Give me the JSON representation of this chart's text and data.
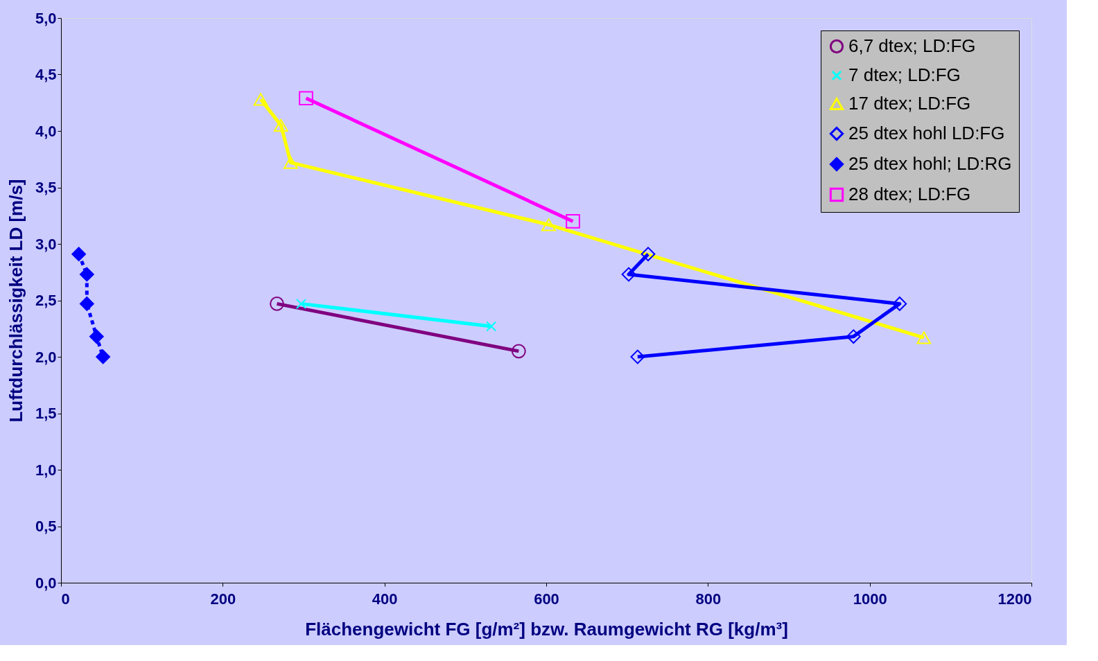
{
  "chart_data": {
    "type": "line",
    "xlabel": "Flächengewicht FG [g/m²]   bzw.   Raumgewicht RG [kg/m³]",
    "ylabel": "Luftdurchlässigkeit LD [m/s]",
    "xlim": [
      0,
      1200
    ],
    "xticks": [
      0,
      200,
      400,
      600,
      800,
      1000,
      1200
    ],
    "ylim": [
      0,
      5
    ],
    "yticks": [
      {
        "value": 0,
        "label": "0,0"
      },
      {
        "value": 0.5,
        "label": "0,5"
      },
      {
        "value": 1,
        "label": "1,0"
      },
      {
        "value": 1.5,
        "label": "1,5"
      },
      {
        "value": 2,
        "label": "2,0"
      },
      {
        "value": 2.5,
        "label": "2,5"
      },
      {
        "value": 3,
        "label": "3,0"
      },
      {
        "value": 3.5,
        "label": "3,5"
      },
      {
        "value": 4,
        "label": "4,0"
      },
      {
        "value": 4.5,
        "label": "4,5"
      },
      {
        "value": 5,
        "label": "5,0"
      }
    ],
    "grid": false,
    "legend": "top right",
    "series": [
      {
        "name": "6,7 dtex; LD:FG",
        "color": "#800080",
        "marker": "circle",
        "line_style": "solid",
        "x": [
          267,
          566
        ],
        "values": [
          2.47,
          2.05
        ]
      },
      {
        "name": "7 dtex; LD:FG",
        "color": "#00ffff",
        "marker": "cross",
        "line_style": "solid",
        "x": [
          297,
          532
        ],
        "values": [
          2.47,
          2.27
        ]
      },
      {
        "name": "17 dtex; LD:FG",
        "color": "#ffff00",
        "marker": "triangle",
        "line_style": "solid",
        "x": [
          247,
          272,
          284,
          603,
          1067
        ],
        "values": [
          4.28,
          4.05,
          3.72,
          3.17,
          2.17
        ]
      },
      {
        "name": "25 dtex hohl LD:FG",
        "color": "#0000ff",
        "marker": "diamond",
        "line_style": "solid",
        "x": [
          726,
          702,
          1037,
          980,
          713
        ],
        "values": [
          2.91,
          2.73,
          2.47,
          2.18,
          2.0
        ]
      },
      {
        "name": "25 dtex hohl; LD:RG",
        "color": "#0000ff",
        "marker": "diamond",
        "line_style": "dashed",
        "x": [
          22,
          32,
          32,
          44,
          52
        ],
        "values": [
          2.91,
          2.73,
          2.47,
          2.18,
          2.0
        ]
      },
      {
        "name": "28 dtex; LD:FG",
        "color": "#ff00ff",
        "marker": "square",
        "line_style": "solid",
        "x": [
          303,
          633
        ],
        "values": [
          4.29,
          3.2
        ]
      }
    ]
  }
}
